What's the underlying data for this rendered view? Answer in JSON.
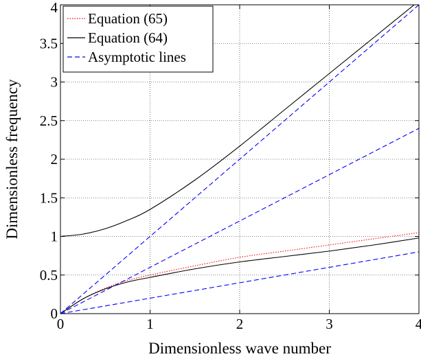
{
  "chart_data": {
    "type": "line",
    "title": "",
    "xlabel": "Dimensionless wave number",
    "ylabel": "Dimensionless frequency",
    "xlim": [
      0,
      4
    ],
    "ylim": [
      0,
      4
    ],
    "xticks": [
      "0",
      "1",
      "2",
      "3",
      "4"
    ],
    "yticks": [
      "0",
      "0.5",
      "1",
      "1.5",
      "2",
      "2.5",
      "3",
      "3.5",
      "4"
    ],
    "grid": true,
    "legend_position": "top-left",
    "legend": [
      {
        "label": "Equation (65)",
        "color": "#ff0000",
        "style": "dotted"
      },
      {
        "label": "Equation (64)",
        "color": "#000000",
        "style": "solid"
      },
      {
        "label": "Asymptotic lines",
        "color": "#0000ff",
        "style": "dashed"
      }
    ],
    "series": [
      {
        "name": "Equation (65)",
        "color": "#ff0000",
        "style": "dotted",
        "x": [
          0,
          0.25,
          0.5,
          0.75,
          1.0,
          1.5,
          2.0,
          2.5,
          3.0,
          3.5,
          4.0
        ],
        "y": [
          0,
          0.19,
          0.33,
          0.43,
          0.5,
          0.62,
          0.73,
          0.81,
          0.89,
          0.97,
          1.05
        ]
      },
      {
        "name": "Equation (64)",
        "color": "#000000",
        "style": "solid",
        "x": [
          0,
          0.25,
          0.5,
          0.75,
          1.0,
          1.5,
          2.0,
          2.5,
          3.0,
          3.5,
          4.0
        ],
        "y": [
          0,
          0.19,
          0.32,
          0.41,
          0.47,
          0.58,
          0.67,
          0.74,
          0.81,
          0.89,
          0.98
        ]
      },
      {
        "name": "Equation (64)",
        "color": "#000000",
        "style": "solid",
        "x": [
          0,
          0.25,
          0.5,
          0.75,
          1.0,
          1.5,
          2.0,
          2.5,
          3.0,
          3.5,
          4.0
        ],
        "y": [
          1.0,
          1.03,
          1.1,
          1.21,
          1.35,
          1.73,
          2.17,
          2.64,
          3.11,
          3.58,
          4.05
        ]
      },
      {
        "name": "Asymptotic lines",
        "color": "#0000ff",
        "style": "dashed",
        "x": [
          0,
          4
        ],
        "y": [
          0,
          4
        ]
      },
      {
        "name": "Asymptotic lines",
        "color": "#0000ff",
        "style": "dashed",
        "x": [
          0,
          4
        ],
        "y": [
          0,
          2.4
        ]
      },
      {
        "name": "Asymptotic lines",
        "color": "#0000ff",
        "style": "dashed",
        "x": [
          0,
          4
        ],
        "y": [
          0,
          0.8
        ]
      }
    ]
  }
}
